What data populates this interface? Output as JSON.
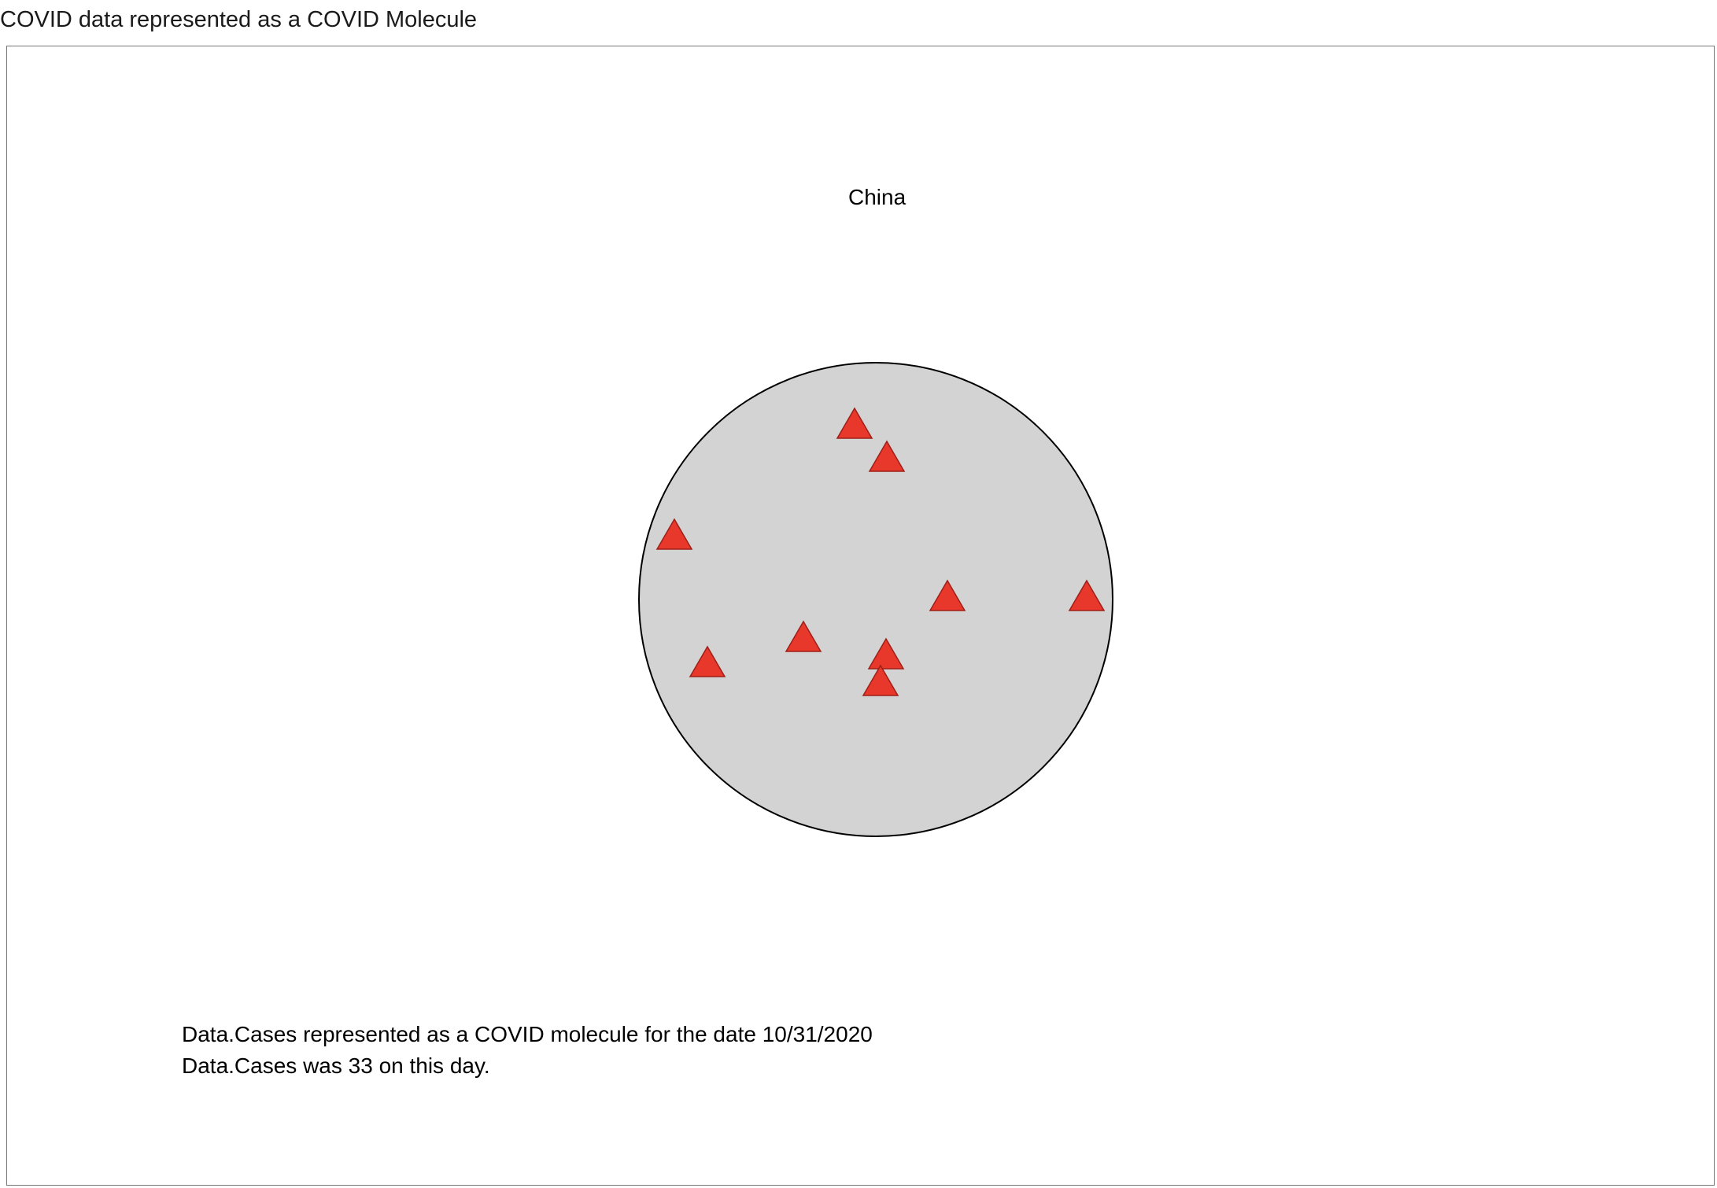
{
  "page": {
    "heading": "COVID data represented as a COVID Molecule"
  },
  "visualization": {
    "country": "China",
    "metric": "Data.Cases",
    "date": "10/31/2020",
    "value": 33,
    "spike_count": 9,
    "caption_line1": "Data.Cases represented as a COVID molecule for the date 10/31/2020",
    "caption_line2": "Data.Cases was 33 on this day.",
    "colors": {
      "cell_fill": "#d3d3d3",
      "cell_stroke": "#000000",
      "spike_fill": "#e8382c",
      "spike_stroke": "#9e1f17",
      "frame_border": "#777777"
    }
  }
}
